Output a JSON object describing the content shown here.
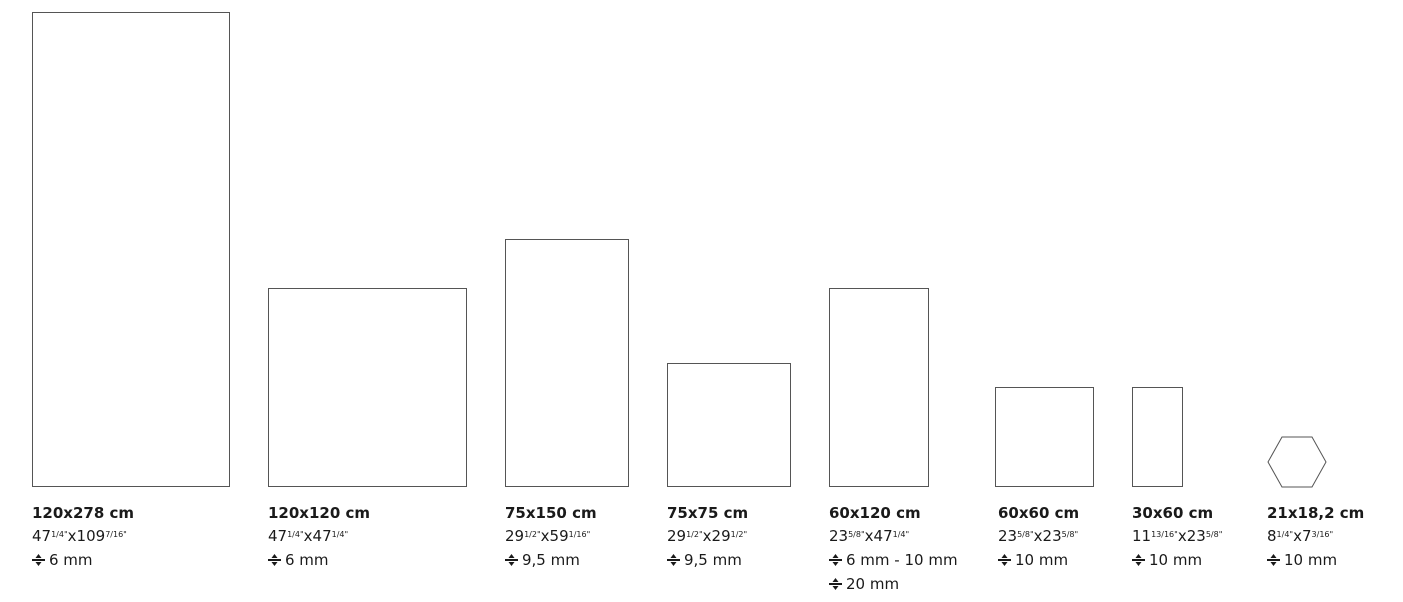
{
  "formats": [
    {
      "cm": "120x278 cm",
      "in": [
        {
          "w": "47",
          "w_frac": "1/4\"",
          "sep": "x",
          "h": "109",
          "h_frac": "7/16\""
        }
      ],
      "thickness": [
        "6 mm"
      ],
      "icon": "thickness-icon"
    },
    {
      "cm": "120x120 cm",
      "in": [
        {
          "w": "47",
          "w_frac": "1/4\"",
          "sep": "x",
          "h": "47",
          "h_frac": "1/4\""
        }
      ],
      "thickness": [
        "6 mm"
      ],
      "icon": "thickness-icon"
    },
    {
      "cm": "75x150 cm",
      "in": [
        {
          "w": "29",
          "w_frac": "1/2\"",
          "sep": "x",
          "h": "59",
          "h_frac": "1/16\""
        }
      ],
      "thickness": [
        "9,5 mm"
      ],
      "icon": "thickness-icon"
    },
    {
      "cm": "75x75 cm",
      "in": [
        {
          "w": "29",
          "w_frac": "1/2\"",
          "sep": "x",
          "h": "29",
          "h_frac": "1/2\""
        }
      ],
      "thickness": [
        "9,5 mm"
      ],
      "icon": "thickness-icon"
    },
    {
      "cm": "60x120 cm",
      "in": [
        {
          "w": "23",
          "w_frac": "5/8\"",
          "sep": "x",
          "h": "47",
          "h_frac": "1/4\""
        }
      ],
      "thickness": [
        "6 mm - 10 mm",
        "20 mm"
      ],
      "icon": "thickness-icon"
    },
    {
      "cm": "60x60 cm",
      "in": [
        {
          "w": "23",
          "w_frac": "5/8\"",
          "sep": "x",
          "h": "23",
          "h_frac": "5/8\""
        }
      ],
      "thickness": [
        "10 mm"
      ],
      "icon": "thickness-icon"
    },
    {
      "cm": "30x60 cm",
      "in": [
        {
          "w": "11",
          "w_frac": "13/16\"",
          "sep": "x",
          "h": "23",
          "h_frac": "5/8\""
        }
      ],
      "thickness": [
        "10 mm"
      ],
      "icon": "thickness-icon"
    },
    {
      "cm": "21x18,2 cm",
      "in": [
        {
          "w": "8",
          "w_frac": "1/4\"",
          "sep": "x",
          "h": "7",
          "h_frac": "3/16\""
        }
      ],
      "thickness": [
        "10 mm"
      ],
      "icon": "thickness-icon",
      "shape": "hexagon"
    }
  ],
  "colors": {
    "outline": "#555555",
    "text": "#1a1a1a"
  }
}
